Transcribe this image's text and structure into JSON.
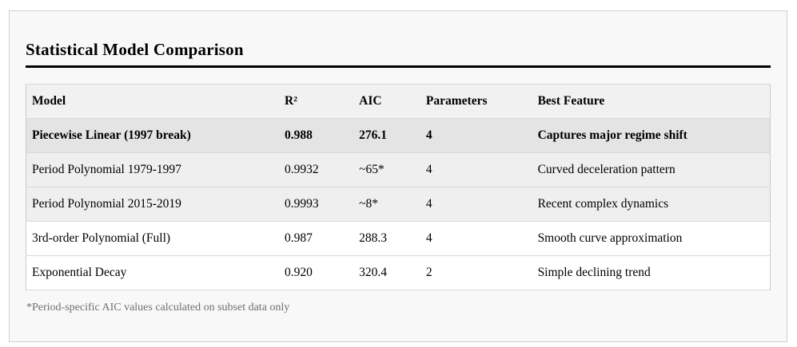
{
  "page": {
    "title": "Statistical Model Comparison",
    "footnote": "*Period-specific AIC values calculated on subset data only"
  },
  "table": {
    "columns": [
      {
        "key": "model",
        "label": "Model"
      },
      {
        "key": "r2",
        "label": "R²"
      },
      {
        "key": "aic",
        "label": "AIC"
      },
      {
        "key": "parameters",
        "label": "Parameters"
      },
      {
        "key": "best_feature",
        "label": "Best Feature"
      }
    ],
    "rows": [
      {
        "model": "Piecewise Linear (1997 break)",
        "r2": "0.988",
        "aic": "276.1",
        "parameters": "4",
        "best_feature": "Captures major regime shift",
        "emphasis": "strong"
      },
      {
        "model": "Period Polynomial 1979-1997",
        "r2": "0.9932",
        "aic": "~65*",
        "parameters": "4",
        "best_feature": "Curved deceleration pattern",
        "emphasis": "light"
      },
      {
        "model": "Period Polynomial 2015-2019",
        "r2": "0.9993",
        "aic": "~8*",
        "parameters": "4",
        "best_feature": "Recent complex dynamics",
        "emphasis": "light"
      },
      {
        "model": "3rd-order Polynomial (Full)",
        "r2": "0.987",
        "aic": "288.3",
        "parameters": "4",
        "best_feature": "Smooth curve approximation",
        "emphasis": "none"
      },
      {
        "model": "Exponential Decay",
        "r2": "0.920",
        "aic": "320.4",
        "parameters": "2",
        "best_feature": "Simple declining trend",
        "emphasis": "none"
      }
    ]
  },
  "colors": {
    "card_background": "#f8f8f8",
    "card_border": "#cfcfcf",
    "title_rule": "#000000",
    "header_row_background": "#f1f1f1",
    "highlight_row_background": "#e4e4e4",
    "subtle_row_background": "#efefef",
    "plain_row_background": "#ffffff",
    "footnote_text": "#6f6f6f"
  }
}
